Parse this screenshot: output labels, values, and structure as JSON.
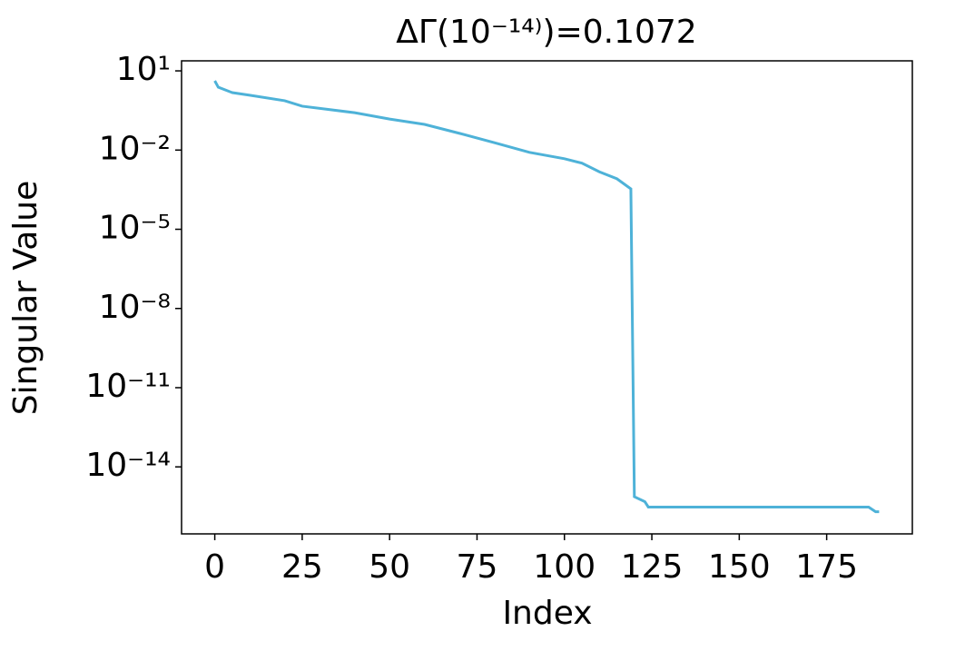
{
  "chart_data": {
    "type": "line",
    "title": "ΔΓ(10⁻¹⁴⁾)=0.1072",
    "x_label": "Index",
    "y_label": "Singular Value",
    "yscale": "log",
    "grid": false,
    "x": [
      0,
      1,
      5,
      10,
      20,
      25,
      40,
      50,
      60,
      70,
      80,
      90,
      100,
      105,
      110,
      115,
      119,
      120,
      123,
      124,
      187,
      189,
      190
    ],
    "series": [
      {
        "color": "#4eb2d8",
        "values": [
          4.2,
          2.4,
          1.5,
          1.2,
          0.74,
          0.46,
          0.26,
          0.15,
          0.094,
          0.043,
          0.019,
          0.0082,
          0.0047,
          0.0032,
          0.0015,
          0.00082,
          0.00034,
          7.4e-16,
          4.8e-16,
          3e-16,
          3e-16,
          2e-16,
          2e-16
        ]
      }
    ],
    "xlim": [
      -9.5,
      199.5
    ],
    "xticks": [
      0,
      25,
      50,
      75,
      100,
      125,
      150,
      175
    ],
    "ylim": [
      24,
      2.9e-17
    ],
    "yticks": [
      {
        "value": 10,
        "label": "10¹"
      },
      {
        "value": 0.01,
        "label": "10⁻²"
      },
      {
        "value": 1e-05,
        "label": "10⁻⁵"
      },
      {
        "value": 1e-08,
        "label": "10⁻⁸"
      },
      {
        "value": 1e-11,
        "label": "10⁻¹¹"
      },
      {
        "value": 1e-14,
        "label": "10⁻¹⁴"
      }
    ]
  }
}
